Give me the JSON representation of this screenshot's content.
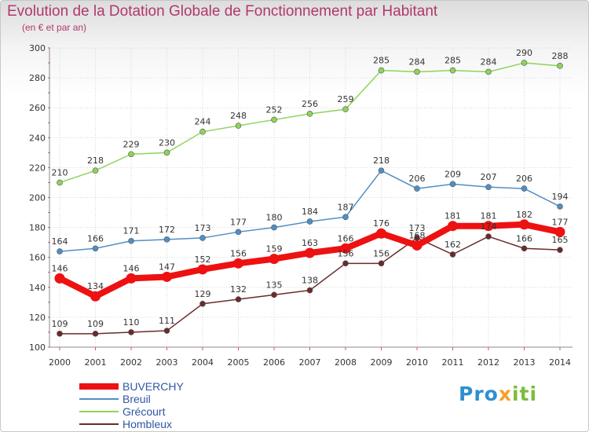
{
  "title": "Evolution de la Dotation Globale de Fonctionnement par Habitant",
  "subtitle": "(en € et par an)",
  "logo": {
    "p1": "Pro",
    "p2": "x",
    "p3": "iti"
  },
  "chart_data": {
    "type": "line",
    "title": "Evolution de la Dotation Globale de Fonctionnement par Habitant",
    "subtitle": "(en € et par an)",
    "xlabel": "",
    "ylabel": "",
    "ylim": [
      100,
      300
    ],
    "yticks": [
      100,
      120,
      140,
      160,
      180,
      200,
      220,
      240,
      260,
      280,
      300
    ],
    "grid": true,
    "legend": "bottom-left",
    "categories": [
      "2000",
      "2001",
      "2002",
      "2003",
      "2004",
      "2005",
      "2006",
      "2007",
      "2008",
      "2009",
      "2010",
      "2011",
      "2012",
      "2013",
      "2014"
    ],
    "series": [
      {
        "name": "BUVERCHY",
        "color": "#ee1111",
        "style": "bold",
        "values": [
          146,
          134,
          146,
          147,
          152,
          156,
          159,
          163,
          166,
          176,
          168,
          181,
          181,
          182,
          177
        ]
      },
      {
        "name": "Breuil",
        "color": "#4f8fc4",
        "values": [
          164,
          166,
          171,
          172,
          173,
          177,
          180,
          184,
          187,
          218,
          206,
          209,
          207,
          206,
          194
        ]
      },
      {
        "name": "Grécourt",
        "color": "#8fd35a",
        "values": [
          210,
          218,
          229,
          230,
          244,
          248,
          252,
          256,
          259,
          285,
          284,
          285,
          284,
          290,
          288
        ]
      },
      {
        "name": "Hombleux",
        "color": "#6b2a2a",
        "values": [
          109,
          109,
          110,
          111,
          129,
          132,
          135,
          138,
          156,
          156,
          173,
          162,
          174,
          166,
          165
        ]
      }
    ]
  }
}
